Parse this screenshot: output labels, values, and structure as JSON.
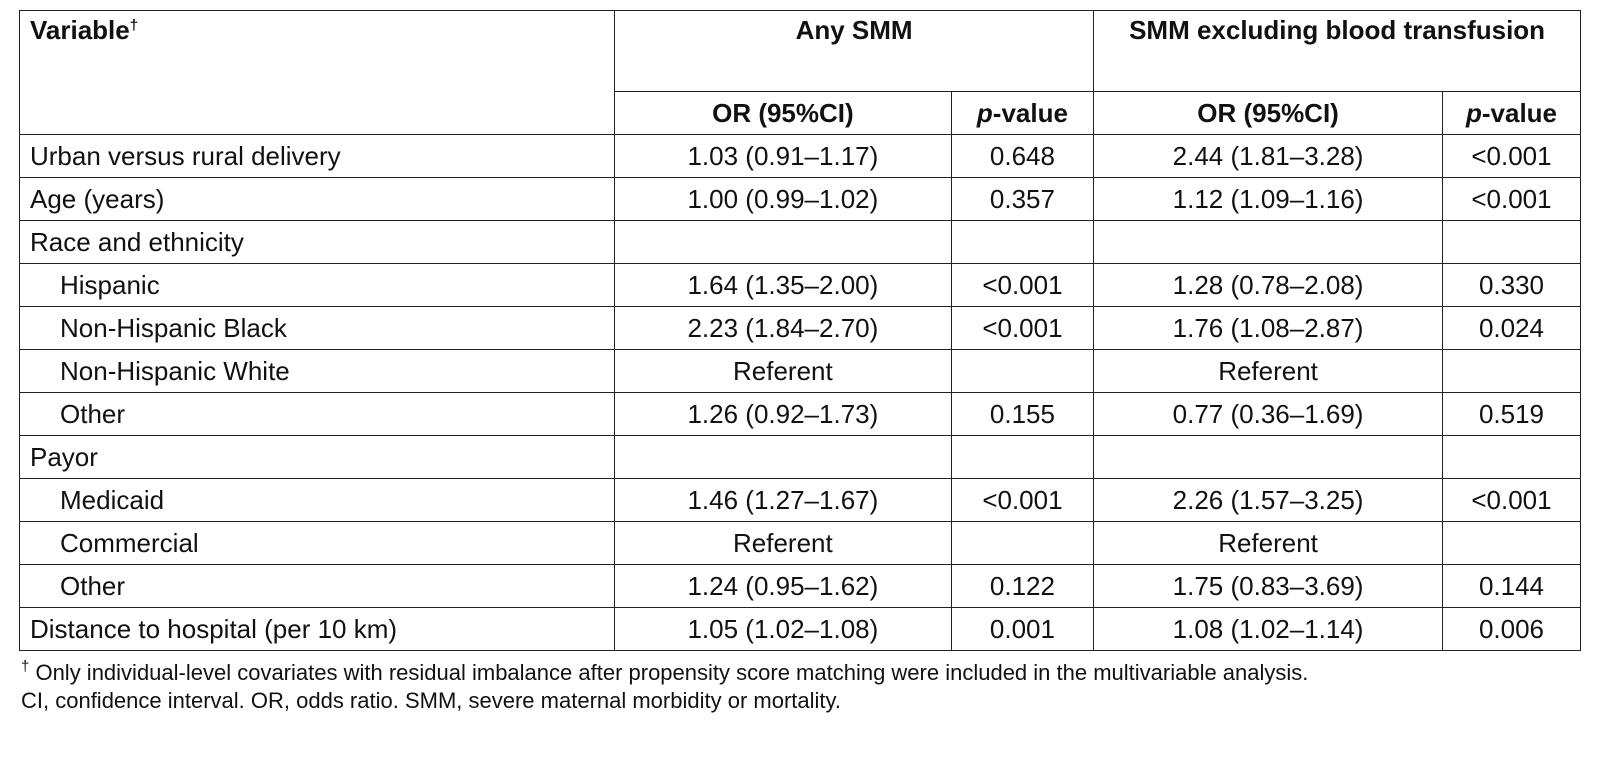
{
  "table": {
    "header": {
      "variable": "Variable",
      "variable_mark": "†",
      "group1": "Any SMM",
      "group2": "SMM excluding blood transfusion",
      "or_label": "OR (95%CI)",
      "p_italic": "p",
      "p_suffix": "-value"
    },
    "rows": [
      {
        "label": "Urban versus rural delivery",
        "indent": false,
        "or1": "1.03 (0.91–1.17)",
        "p1": "0.648",
        "or2": "2.44 (1.81–3.28)",
        "p2": "<0.001"
      },
      {
        "label": "Age (years)",
        "indent": false,
        "or1": "1.00 (0.99–1.02)",
        "p1": "0.357",
        "or2": "1.12 (1.09–1.16)",
        "p2": "<0.001"
      },
      {
        "label": "Race and ethnicity",
        "indent": false,
        "or1": "",
        "p1": "",
        "or2": "",
        "p2": ""
      },
      {
        "label": "Hispanic",
        "indent": true,
        "or1": "1.64 (1.35–2.00)",
        "p1": "<0.001",
        "or2": "1.28 (0.78–2.08)",
        "p2": "0.330"
      },
      {
        "label": "Non-Hispanic Black",
        "indent": true,
        "or1": "2.23 (1.84–2.70)",
        "p1": "<0.001",
        "or2": "1.76 (1.08–2.87)",
        "p2": "0.024"
      },
      {
        "label": "Non-Hispanic White",
        "indent": true,
        "or1": "Referent",
        "p1": "",
        "or2": "Referent",
        "p2": ""
      },
      {
        "label": "Other",
        "indent": true,
        "or1": "1.26 (0.92–1.73)",
        "p1": "0.155",
        "or2": "0.77 (0.36–1.69)",
        "p2": "0.519"
      },
      {
        "label": "Payor",
        "indent": false,
        "or1": "",
        "p1": "",
        "or2": "",
        "p2": ""
      },
      {
        "label": "Medicaid",
        "indent": true,
        "or1": "1.46 (1.27–1.67)",
        "p1": "<0.001",
        "or2": "2.26 (1.57–3.25)",
        "p2": "<0.001"
      },
      {
        "label": "Commercial",
        "indent": true,
        "or1": "Referent",
        "p1": "",
        "or2": "Referent",
        "p2": ""
      },
      {
        "label": "Other",
        "indent": true,
        "or1": "1.24 (0.95–1.62)",
        "p1": "0.122",
        "or2": "1.75 (0.83–3.69)",
        "p2": "0.144"
      },
      {
        "label": "Distance to hospital (per 10 km)",
        "indent": false,
        "or1": "1.05 (1.02–1.08)",
        "p1": "0.001",
        "or2": "1.08 (1.02–1.14)",
        "p2": "0.006"
      }
    ]
  },
  "footnotes": {
    "mark": "†",
    "note1": " Only individual-level covariates with residual imbalance after propensity score matching were included in the multivariable analysis.",
    "note2": "CI, confidence interval. OR, odds ratio. SMM, severe maternal morbidity or mortality."
  }
}
